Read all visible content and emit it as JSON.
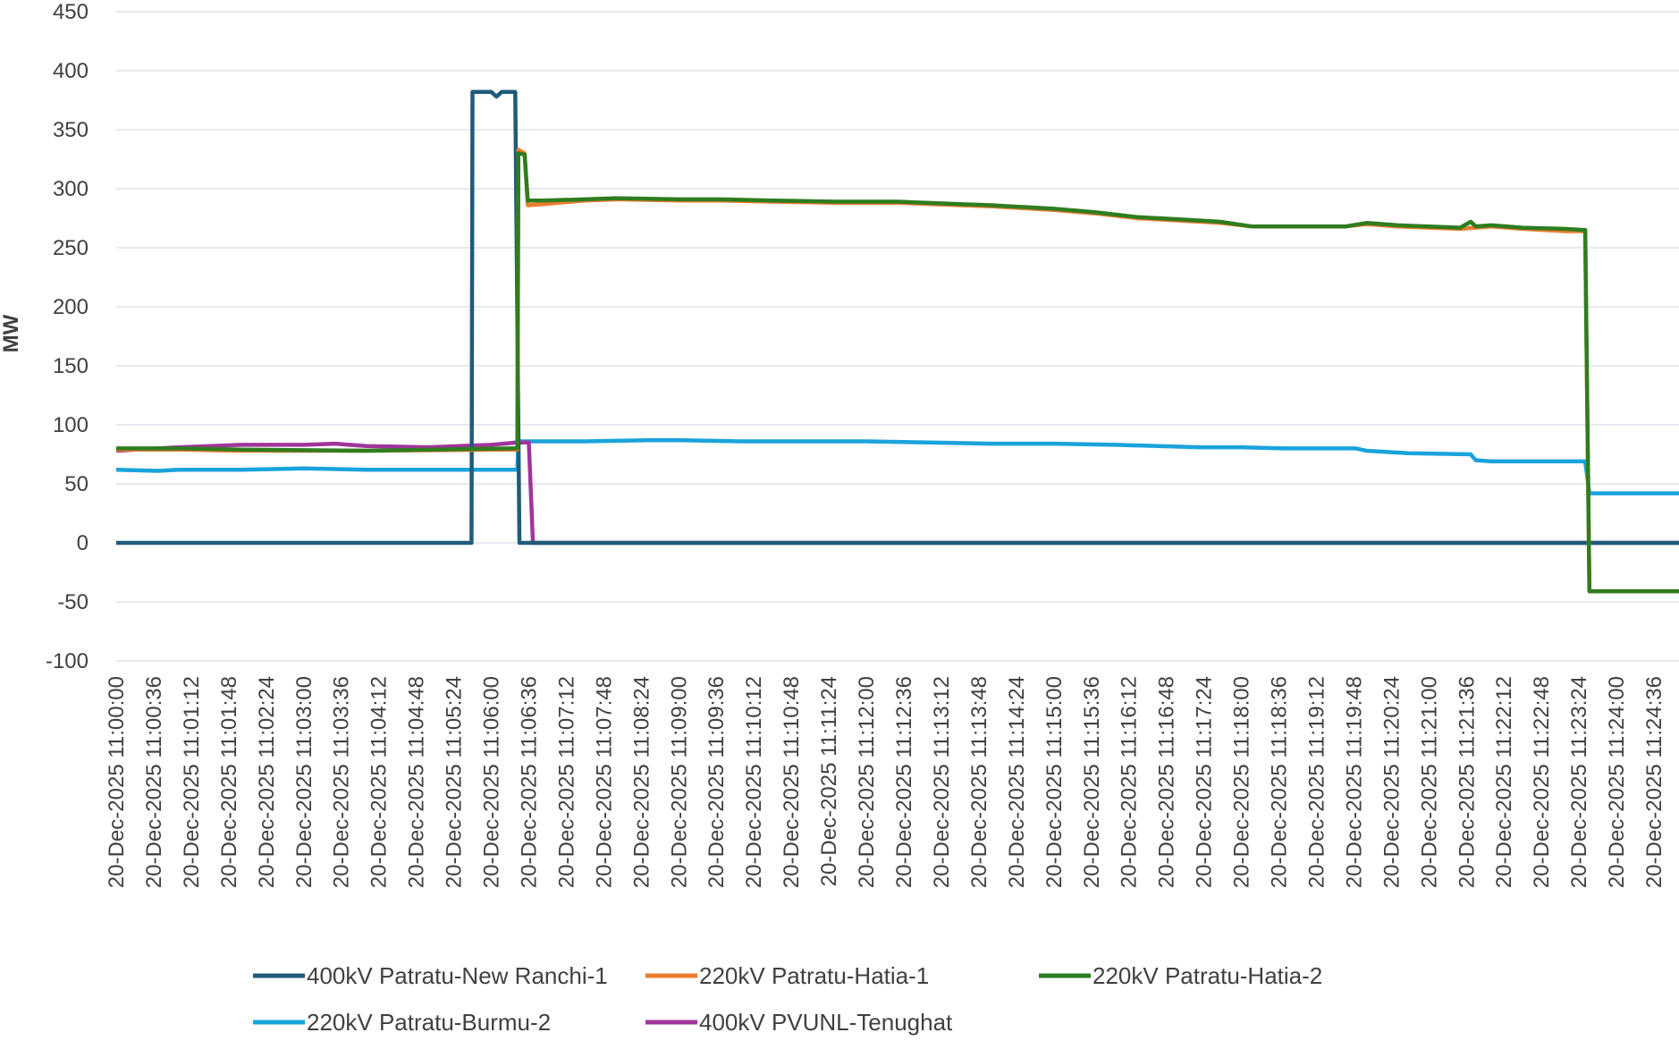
{
  "chart_data": {
    "type": "line",
    "title": "",
    "xlabel": "",
    "ylabel": "MW",
    "ylim": [
      -100,
      450
    ],
    "y_ticks": [
      450,
      400,
      350,
      300,
      250,
      200,
      150,
      100,
      50,
      0,
      -50,
      -100
    ],
    "y_tick_labels": [
      "450",
      "400",
      "350",
      "300",
      "250",
      "200",
      "150",
      "100",
      "50",
      "0",
      "-50",
      "-100"
    ],
    "x_range": [
      "20-Dec-2025 11:00:00",
      "20-Dec-2025 11:25:00"
    ],
    "x_tick_labels": [
      "20-Dec-2025 11:00:00",
      "20-Dec-2025 11:00:36",
      "20-Dec-2025 11:01:12",
      "20-Dec-2025 11:01:48",
      "20-Dec-2025 11:02:24",
      "20-Dec-2025 11:03:00",
      "20-Dec-2025 11:03:36",
      "20-Dec-2025 11:04:12",
      "20-Dec-2025 11:04:48",
      "20-Dec-2025 11:05:24",
      "20-Dec-2025 11:06:00",
      "20-Dec-2025 11:06:36",
      "20-Dec-2025 11:07:12",
      "20-Dec-2025 11:07:48",
      "20-Dec-2025 11:08:24",
      "20-Dec-2025 11:09:00",
      "20-Dec-2025 11:09:36",
      "20-Dec-2025 11:10:12",
      "20-Dec-2025 11:10:48",
      "20-Dec-2025 11:11:24",
      "20-Dec-2025 11:12:00",
      "20-Dec-2025 11:12:36",
      "20-Dec-2025 11:13:12",
      "20-Dec-2025 11:13:48",
      "20-Dec-2025 11:14:24",
      "20-Dec-2025 11:15:00",
      "20-Dec-2025 11:15:36",
      "20-Dec-2025 11:16:12",
      "20-Dec-2025 11:16:48",
      "20-Dec-2025 11:17:24",
      "20-Dec-2025 11:18:00",
      "20-Dec-2025 11:18:36",
      "20-Dec-2025 11:19:12",
      "20-Dec-2025 11:19:48",
      "20-Dec-2025 11:20:24",
      "20-Dec-2025 11:21:00",
      "20-Dec-2025 11:21:36",
      "20-Dec-2025 11:22:12",
      "20-Dec-2025 11:22:48",
      "20-Dec-2025 11:23:24",
      "20-Dec-2025 11:24:00",
      "20-Dec-2025 11:24:36"
    ],
    "grid": true,
    "legend_position": "bottom",
    "series": [
      {
        "name": "400kV Patratu-New Ranchi-1",
        "color": "#1f5b7a",
        "points": [
          [
            "20-Dec-2025 11:00:00",
            0
          ],
          [
            "20-Dec-2025 11:05:41",
            0
          ],
          [
            "20-Dec-2025 11:05:42",
            382
          ],
          [
            "20-Dec-2025 11:06:00",
            382
          ],
          [
            "20-Dec-2025 11:06:05",
            378
          ],
          [
            "20-Dec-2025 11:06:10",
            382
          ],
          [
            "20-Dec-2025 11:06:23",
            382
          ],
          [
            "20-Dec-2025 11:06:27",
            0
          ],
          [
            "20-Dec-2025 11:25:00",
            0
          ]
        ]
      },
      {
        "name": "220kV Patratu-Hatia-1",
        "color": "#ed7d31",
        "points": [
          [
            "20-Dec-2025 11:00:00",
            79
          ],
          [
            "20-Dec-2025 11:01:00",
            79
          ],
          [
            "20-Dec-2025 11:02:00",
            78
          ],
          [
            "20-Dec-2025 11:04:00",
            78
          ],
          [
            "20-Dec-2025 11:06:20",
            79
          ],
          [
            "20-Dec-2025 11:06:25",
            79
          ],
          [
            "20-Dec-2025 11:06:26",
            333
          ],
          [
            "20-Dec-2025 11:06:32",
            330
          ],
          [
            "20-Dec-2025 11:06:35",
            286
          ],
          [
            "20-Dec-2025 11:06:50",
            287
          ],
          [
            "20-Dec-2025 11:07:30",
            290
          ],
          [
            "20-Dec-2025 11:08:00",
            291
          ],
          [
            "20-Dec-2025 11:09:00",
            290
          ],
          [
            "20-Dec-2025 11:09:40",
            290
          ],
          [
            "20-Dec-2025 11:10:30",
            289
          ],
          [
            "20-Dec-2025 11:11:30",
            288
          ],
          [
            "20-Dec-2025 11:12:30",
            288
          ],
          [
            "20-Dec-2025 11:13:30",
            286
          ],
          [
            "20-Dec-2025 11:14:00",
            285
          ],
          [
            "20-Dec-2025 11:15:00",
            282
          ],
          [
            "20-Dec-2025 11:15:40",
            279
          ],
          [
            "20-Dec-2025 11:16:20",
            275
          ],
          [
            "20-Dec-2025 11:17:00",
            273
          ],
          [
            "20-Dec-2025 11:17:40",
            271
          ],
          [
            "20-Dec-2025 11:18:10",
            268
          ],
          [
            "20-Dec-2025 11:19:00",
            268
          ],
          [
            "20-Dec-2025 11:19:40",
            268
          ],
          [
            "20-Dec-2025 11:20:00",
            270
          ],
          [
            "20-Dec-2025 11:20:30",
            268
          ],
          [
            "20-Dec-2025 11:21:00",
            267
          ],
          [
            "20-Dec-2025 11:21:30",
            266
          ],
          [
            "20-Dec-2025 11:22:00",
            268
          ],
          [
            "20-Dec-2025 11:22:30",
            266
          ],
          [
            "20-Dec-2025 11:23:10",
            264
          ],
          [
            "20-Dec-2025 11:23:30",
            264
          ],
          [
            "20-Dec-2025 11:23:34",
            -41
          ],
          [
            "20-Dec-2025 11:25:00",
            -41
          ]
        ]
      },
      {
        "name": "220kV Patratu-Hatia-2",
        "color": "#2e7d1f",
        "points": [
          [
            "20-Dec-2025 11:00:00",
            80
          ],
          [
            "20-Dec-2025 11:01:00",
            80
          ],
          [
            "20-Dec-2025 11:02:00",
            79
          ],
          [
            "20-Dec-2025 11:04:00",
            78
          ],
          [
            "20-Dec-2025 11:06:20",
            80
          ],
          [
            "20-Dec-2025 11:06:25",
            80
          ],
          [
            "20-Dec-2025 11:06:26",
            330
          ],
          [
            "20-Dec-2025 11:06:32",
            329
          ],
          [
            "20-Dec-2025 11:06:35",
            290
          ],
          [
            "20-Dec-2025 11:06:50",
            290
          ],
          [
            "20-Dec-2025 11:07:30",
            291
          ],
          [
            "20-Dec-2025 11:08:00",
            292
          ],
          [
            "20-Dec-2025 11:09:00",
            291
          ],
          [
            "20-Dec-2025 11:09:40",
            291
          ],
          [
            "20-Dec-2025 11:10:30",
            290
          ],
          [
            "20-Dec-2025 11:11:30",
            289
          ],
          [
            "20-Dec-2025 11:12:30",
            289
          ],
          [
            "20-Dec-2025 11:13:30",
            287
          ],
          [
            "20-Dec-2025 11:14:00",
            286
          ],
          [
            "20-Dec-2025 11:15:00",
            283
          ],
          [
            "20-Dec-2025 11:15:40",
            280
          ],
          [
            "20-Dec-2025 11:16:20",
            276
          ],
          [
            "20-Dec-2025 11:17:00",
            274
          ],
          [
            "20-Dec-2025 11:17:40",
            272
          ],
          [
            "20-Dec-2025 11:18:10",
            268
          ],
          [
            "20-Dec-2025 11:19:00",
            268
          ],
          [
            "20-Dec-2025 11:19:40",
            268
          ],
          [
            "20-Dec-2025 11:20:00",
            271
          ],
          [
            "20-Dec-2025 11:20:30",
            269
          ],
          [
            "20-Dec-2025 11:21:00",
            268
          ],
          [
            "20-Dec-2025 11:21:30",
            267
          ],
          [
            "20-Dec-2025 11:21:40",
            272
          ],
          [
            "20-Dec-2025 11:21:45",
            268
          ],
          [
            "20-Dec-2025 11:22:00",
            269
          ],
          [
            "20-Dec-2025 11:22:30",
            267
          ],
          [
            "20-Dec-2025 11:23:10",
            266
          ],
          [
            "20-Dec-2025 11:23:30",
            265
          ],
          [
            "20-Dec-2025 11:23:34",
            -41
          ],
          [
            "20-Dec-2025 11:25:00",
            -41
          ]
        ]
      },
      {
        "name": "220kV Patratu-Burmu-2",
        "color": "#1aa3dc",
        "points": [
          [
            "20-Dec-2025 11:00:00",
            62
          ],
          [
            "20-Dec-2025 11:00:40",
            61
          ],
          [
            "20-Dec-2025 11:01:00",
            62
          ],
          [
            "20-Dec-2025 11:02:00",
            62
          ],
          [
            "20-Dec-2025 11:03:00",
            63
          ],
          [
            "20-Dec-2025 11:04:00",
            62
          ],
          [
            "20-Dec-2025 11:05:00",
            62
          ],
          [
            "20-Dec-2025 11:06:25",
            62
          ],
          [
            "20-Dec-2025 11:06:26",
            86
          ],
          [
            "20-Dec-2025 11:07:30",
            86
          ],
          [
            "20-Dec-2025 11:08:30",
            87
          ],
          [
            "20-Dec-2025 11:09:00",
            87
          ],
          [
            "20-Dec-2025 11:10:00",
            86
          ],
          [
            "20-Dec-2025 11:11:00",
            86
          ],
          [
            "20-Dec-2025 11:12:00",
            86
          ],
          [
            "20-Dec-2025 11:13:00",
            85
          ],
          [
            "20-Dec-2025 11:14:00",
            84
          ],
          [
            "20-Dec-2025 11:15:00",
            84
          ],
          [
            "20-Dec-2025 11:16:00",
            83
          ],
          [
            "20-Dec-2025 11:16:40",
            82
          ],
          [
            "20-Dec-2025 11:17:20",
            81
          ],
          [
            "20-Dec-2025 11:18:00",
            81
          ],
          [
            "20-Dec-2025 11:18:40",
            80
          ],
          [
            "20-Dec-2025 11:19:50",
            80
          ],
          [
            "20-Dec-2025 11:20:00",
            78
          ],
          [
            "20-Dec-2025 11:20:40",
            76
          ],
          [
            "20-Dec-2025 11:21:40",
            75
          ],
          [
            "20-Dec-2025 11:21:45",
            70
          ],
          [
            "20-Dec-2025 11:22:00",
            69
          ],
          [
            "20-Dec-2025 11:23:00",
            69
          ],
          [
            "20-Dec-2025 11:23:30",
            69
          ],
          [
            "20-Dec-2025 11:23:34",
            42
          ],
          [
            "20-Dec-2025 11:25:00",
            42
          ]
        ]
      },
      {
        "name": "400kV PVUNL-Tenughat",
        "color": "#a0359b",
        "points": [
          [
            "20-Dec-2025 11:00:00",
            78
          ],
          [
            "20-Dec-2025 11:01:00",
            81
          ],
          [
            "20-Dec-2025 11:02:00",
            83
          ],
          [
            "20-Dec-2025 11:03:00",
            83
          ],
          [
            "20-Dec-2025 11:03:30",
            84
          ],
          [
            "20-Dec-2025 11:04:00",
            82
          ],
          [
            "20-Dec-2025 11:05:00",
            81
          ],
          [
            "20-Dec-2025 11:06:00",
            83
          ],
          [
            "20-Dec-2025 11:06:25",
            85
          ],
          [
            "20-Dec-2025 11:06:36",
            85
          ],
          [
            "20-Dec-2025 11:06:40",
            0
          ],
          [
            "20-Dec-2025 11:25:00",
            0
          ]
        ]
      }
    ]
  }
}
